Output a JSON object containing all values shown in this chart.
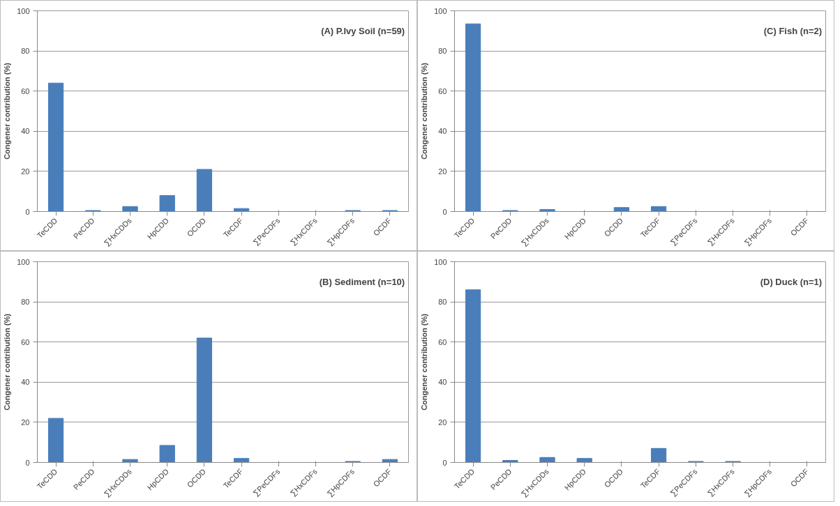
{
  "chart_data": [
    {
      "type": "bar",
      "title": "(A) P.Ivy Soil (n=59)",
      "ylabel": "Congener contribution (%)",
      "categories": [
        "TeCDD",
        "PeCDD",
        "∑HxCDDs",
        "HpCDD",
        "OCDD",
        "TeCDF",
        "∑PeCDFs",
        "∑HxCDFs",
        "∑HpCDFs",
        "OCDF"
      ],
      "values": [
        64,
        0.5,
        2.5,
        8,
        21,
        1.5,
        0,
        0,
        0.5,
        0.5
      ],
      "color": "#4a7ebb",
      "ylim": [
        0,
        100
      ],
      "yticks": [
        0,
        20,
        40,
        60,
        80,
        100
      ],
      "grid": "y"
    },
    {
      "type": "bar",
      "title": "(C) Fish (n=2)",
      "ylabel": "Congener contribution (%)",
      "categories": [
        "TeCDD",
        "PeCDD",
        "∑HxCDDs",
        "HpCDD",
        "OCDD",
        "TeCDF",
        "∑PeCDFs",
        "∑HxCDFs",
        "∑HpCDFs",
        "OCDF"
      ],
      "values": [
        93.5,
        0.5,
        1,
        0,
        2,
        2.5,
        0,
        0,
        0,
        0
      ],
      "color": "#4a7ebb",
      "ylim": [
        0,
        100
      ],
      "yticks": [
        0,
        20,
        40,
        60,
        80,
        100
      ],
      "grid": "y"
    },
    {
      "type": "bar",
      "title": "(B) Sediment (n=10)",
      "ylabel": "Congener contribution (%)",
      "categories": [
        "TeCDD",
        "PeCDD",
        "∑HxCDDs",
        "HpCDD",
        "OCDD",
        "TeCDF",
        "∑PeCDFs",
        "∑HxCDFs",
        "∑HpCDFs",
        "OCDF"
      ],
      "values": [
        22,
        0,
        1.5,
        8.5,
        62,
        2,
        0,
        0,
        0.5,
        1.5
      ],
      "color": "#4a7ebb",
      "ylim": [
        0,
        100
      ],
      "yticks": [
        0,
        20,
        40,
        60,
        80,
        100
      ],
      "grid": "y"
    },
    {
      "type": "bar",
      "title": "(D) Duck (n=1)",
      "ylabel": "Congener contribution (%)",
      "categories": [
        "TeCDD",
        "PeCDD",
        "∑HxCDDs",
        "HpCDD",
        "OCDD",
        "TeCDF",
        "∑PeCDFs",
        "∑HxCDFs",
        "∑HpCDFs",
        "OCDF"
      ],
      "values": [
        86,
        1,
        2.5,
        2,
        0,
        7,
        0.5,
        0.5,
        0,
        0
      ],
      "color": "#4a7ebb",
      "ylim": [
        0,
        100
      ],
      "yticks": [
        0,
        20,
        40,
        60,
        80,
        100
      ],
      "grid": "y"
    }
  ]
}
